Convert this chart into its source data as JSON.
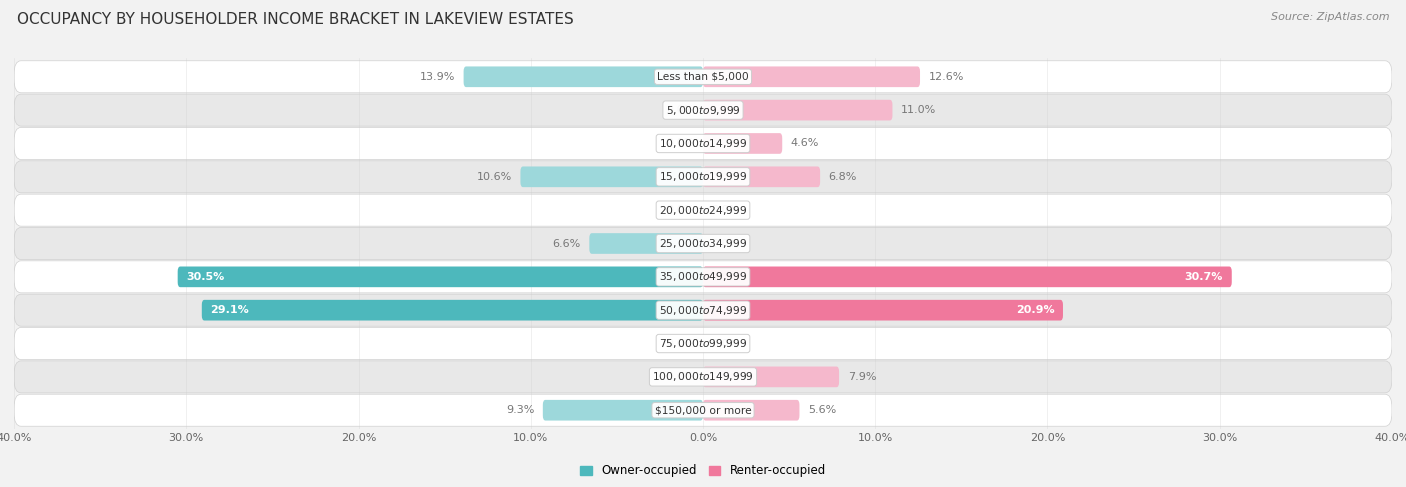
{
  "title": "OCCUPANCY BY HOUSEHOLDER INCOME BRACKET IN LAKEVIEW ESTATES",
  "source": "Source: ZipAtlas.com",
  "categories": [
    "Less than $5,000",
    "$5,000 to $9,999",
    "$10,000 to $14,999",
    "$15,000 to $19,999",
    "$20,000 to $24,999",
    "$25,000 to $34,999",
    "$35,000 to $49,999",
    "$50,000 to $74,999",
    "$75,000 to $99,999",
    "$100,000 to $149,999",
    "$150,000 or more"
  ],
  "owner_values": [
    13.9,
    0.0,
    0.0,
    10.6,
    0.0,
    6.6,
    30.5,
    29.1,
    0.0,
    0.0,
    9.3
  ],
  "renter_values": [
    12.6,
    11.0,
    4.6,
    6.8,
    0.0,
    0.0,
    30.7,
    20.9,
    0.0,
    7.9,
    5.6
  ],
  "owner_color_dark": "#4db8bc",
  "owner_color_light": "#9dd8db",
  "renter_color_dark": "#f0789c",
  "renter_color_light": "#f5b8cc",
  "axis_limit": 40.0,
  "bar_height": 0.62,
  "bg_color": "#f0f0f0",
  "row_bg_odd": "#f8f8f8",
  "row_bg_even": "#e8e8e8",
  "row_bg_light": "#f9f9f9",
  "row_bg_dark": "#ebebeb",
  "title_fontsize": 11,
  "label_fontsize": 8,
  "tick_fontsize": 8,
  "source_fontsize": 8,
  "legend_fontsize": 8.5,
  "large_threshold": 15.0
}
